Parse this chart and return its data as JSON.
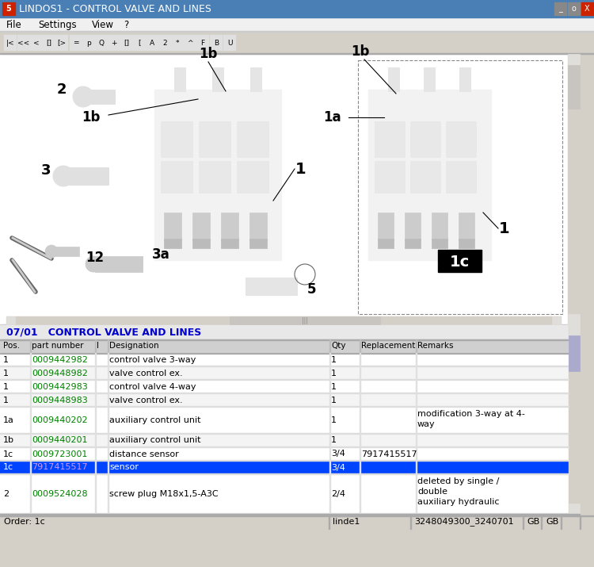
{
  "title_bar": "LINDOS1 - CONTROL VALVE AND LINES",
  "title_bar_bg": "#4a7fb5",
  "title_bar_text_color": "#ffffff",
  "menu_items": [
    "File",
    "Settings",
    "View",
    "?"
  ],
  "section_title": "07/01   CONTROL VALVE AND LINES",
  "section_title_color": "#0000cc",
  "table_header_bg": "#d0d0d0",
  "table_headers": [
    "Pos.",
    "part number",
    "I",
    "Designation",
    "Qty",
    "Replacement",
    "Remarks"
  ],
  "rows": [
    {
      "pos": "1",
      "part": "0009442982",
      "i": "",
      "designation": "control valve 3-way",
      "qty": "1",
      "replacement": "",
      "remarks": "",
      "highlight": false
    },
    {
      "pos": "1",
      "part": "0009448982",
      "i": "",
      "designation": "valve control ex.",
      "qty": "1",
      "replacement": "",
      "remarks": "",
      "highlight": false
    },
    {
      "pos": "1",
      "part": "0009442983",
      "i": "",
      "designation": "control valve 4-way",
      "qty": "1",
      "replacement": "",
      "remarks": "",
      "highlight": false
    },
    {
      "pos": "1",
      "part": "0009448983",
      "i": "",
      "designation": "valve control ex.",
      "qty": "1",
      "replacement": "",
      "remarks": "",
      "highlight": false
    },
    {
      "pos": "1a",
      "part": "0009440202",
      "i": "",
      "designation": "auxiliary control unit",
      "qty": "1",
      "replacement": "",
      "remarks": "modification 3-way at 4-\nway",
      "highlight": false
    },
    {
      "pos": "1b",
      "part": "0009440201",
      "i": "",
      "designation": "auxiliary control unit",
      "qty": "1",
      "replacement": "",
      "remarks": "",
      "highlight": false
    },
    {
      "pos": "1c",
      "part": "0009723001",
      "i": "",
      "designation": "distance sensor",
      "qty": "3/4",
      "replacement": "7917415517",
      "remarks": "",
      "highlight": false
    },
    {
      "pos": "1c",
      "part": "7917415517",
      "i": "",
      "designation": "sensor",
      "qty": "3/4",
      "replacement": "",
      "remarks": "",
      "highlight": true
    },
    {
      "pos": "2",
      "part": "0009524028",
      "i": "",
      "designation": "screw plug M18x1,5-A3C",
      "qty": "2/4",
      "replacement": "",
      "remarks": "deleted by single /\ndouble\nauxiliary hydraulic",
      "highlight": false
    }
  ],
  "part_color_normal": "#008000",
  "part_color_highlight": "#cc99ff",
  "highlight_bg": "#0044ff",
  "highlight_text": "#ffffff",
  "status_bar_bg": "#d4d0c8",
  "status_order": "Order: 1c",
  "status_linde": "linde1",
  "status_serial": "3248049300_3240701",
  "status_gb1": "GB",
  "status_gb2": "GB",
  "diagram_bg": "#ffffff",
  "toolbar_bg": "#d4d0c8",
  "window_bg": "#d4d0c8"
}
